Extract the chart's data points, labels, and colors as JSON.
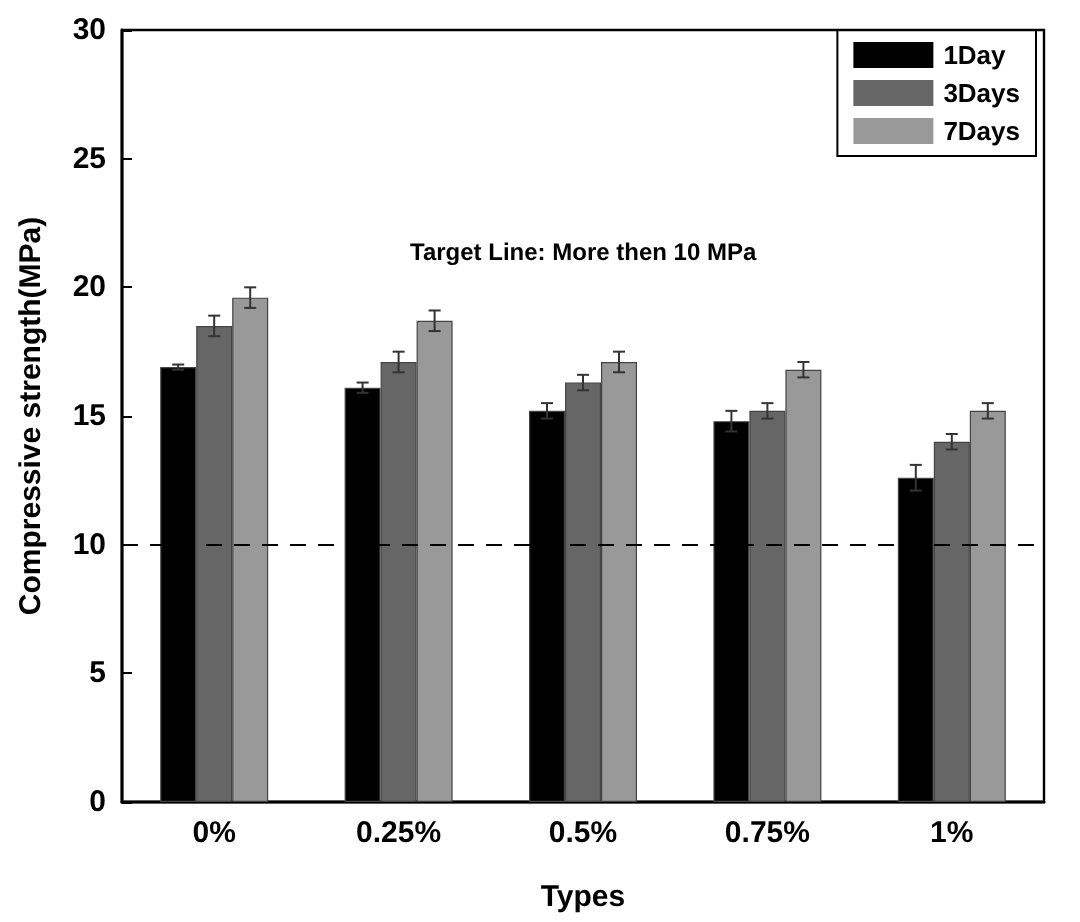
{
  "chart_data": {
    "type": "bar",
    "xlabel": "Types",
    "ylabel": "Compressive strength(MPa)",
    "categories": [
      "0%",
      "0.25%",
      "0.5%",
      "0.75%",
      "1%"
    ],
    "series": [
      {
        "name": "1Day",
        "color": "#000000",
        "values": [
          16.9,
          16.1,
          15.2,
          14.8,
          12.6
        ],
        "errors": [
          0.1,
          0.2,
          0.3,
          0.4,
          0.5
        ]
      },
      {
        "name": "3Days",
        "color": "#666666",
        "values": [
          18.5,
          17.1,
          16.3,
          15.2,
          14.0
        ],
        "errors": [
          0.4,
          0.4,
          0.3,
          0.3,
          0.3
        ]
      },
      {
        "name": "7Days",
        "color": "#999999",
        "values": [
          19.6,
          18.7,
          17.1,
          16.8,
          15.2
        ],
        "errors": [
          0.4,
          0.4,
          0.4,
          0.3,
          0.3
        ]
      }
    ],
    "ylim": [
      0,
      30
    ],
    "yticks": [
      0,
      5,
      10,
      15,
      20,
      25,
      30
    ],
    "grid": false,
    "legend": "top right",
    "ref_lines": [
      {
        "axis": "y",
        "value": 10,
        "line_style": "dashed",
        "color": "#000000"
      }
    ],
    "annotations": [
      "Target Line: More then 10 MPa"
    ]
  }
}
